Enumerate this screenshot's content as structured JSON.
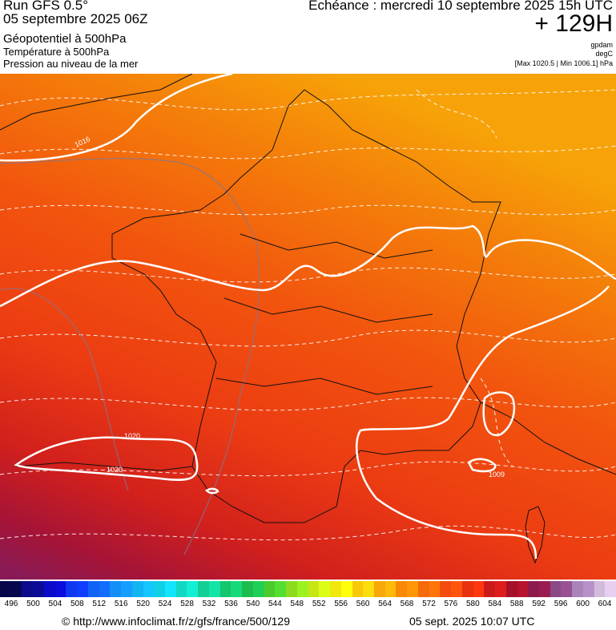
{
  "header": {
    "run": "Run GFS 0.5°",
    "run_date": "05 septembre 2025 06Z",
    "field1": "Géopotentiel à 500hPa",
    "field2": "Température à 500hPa",
    "field3": "Pression au niveau de la mer",
    "echeance": "Echéance : mercredi 10 septembre 2025 15h UTC",
    "offset": "+ 129H",
    "unit1": "gpdam",
    "unit2": "degC",
    "minmax": "[Max 1020.5 | Min 1006.1] hPa"
  },
  "map": {
    "isobar_labels": [
      "1016",
      "1020",
      "1020",
      "1009"
    ]
  },
  "scale": {
    "values": [
      "496",
      "500",
      "504",
      "508",
      "512",
      "516",
      "520",
      "524",
      "528",
      "532",
      "536",
      "540",
      "544",
      "548",
      "552",
      "556",
      "560",
      "564",
      "568",
      "572",
      "576",
      "580",
      "584",
      "588",
      "592",
      "596",
      "600",
      "604"
    ],
    "colors": [
      "#06064a",
      "#0a0a8a",
      "#0b0bc8",
      "#0f38f0",
      "#1063f5",
      "#138ff7",
      "#12b4f2",
      "#10d0e6",
      "#12d8c2",
      "#12cf96",
      "#14c66e",
      "#1cbd4c",
      "#4ccb2c",
      "#8edb1e",
      "#c8e614",
      "#f0e80c",
      "#f8c80a",
      "#f8a808",
      "#f88806",
      "#f76a08",
      "#f44c0c",
      "#e8320e",
      "#cc1a1a",
      "#a6102a",
      "#8c1a4a",
      "#8a4a86",
      "#a884b8",
      "#d2bcdc"
    ]
  },
  "footer": {
    "url": "© http://www.infoclimat.fr/z/gfs/france/500/129",
    "date": "05 sept. 2025 10:07 UTC"
  }
}
